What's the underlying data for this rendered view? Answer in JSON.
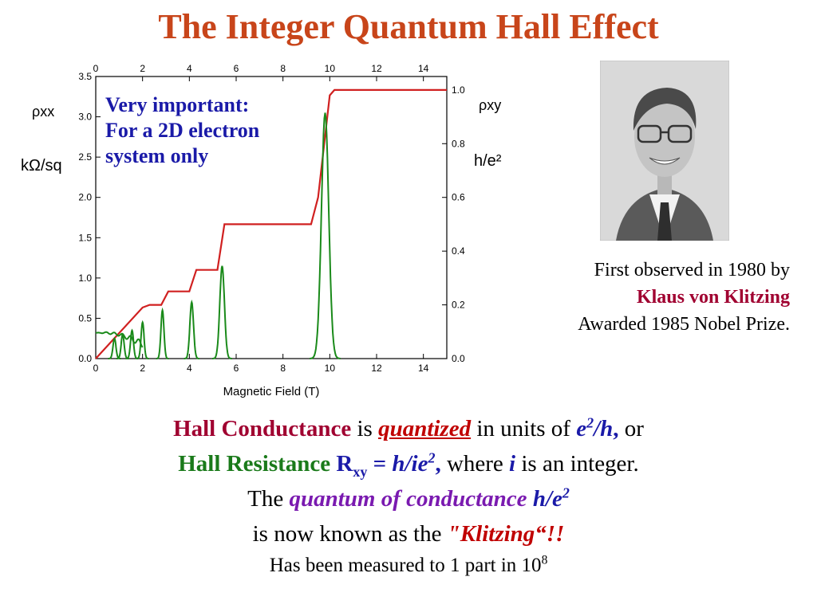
{
  "slide": {
    "title": "The Integer Quantum Hall Effect"
  },
  "note": {
    "line1": "Very important:",
    "line2": "For a 2D electron",
    "line3": "system only"
  },
  "credit": {
    "line1": "First observed in 1980 by",
    "name": "Klaus von Klitzing",
    "line3": "Awarded 1985 Nobel Prize."
  },
  "body": {
    "l1_a": "Hall Conductance",
    "l1_b": " is ",
    "l1_c": "quantized",
    "l1_d": " in units of ",
    "l1_e": "e",
    "l1_e_sup": "2",
    "l1_f": "/h",
    "l1_g": ",",
    "l1_h": " or",
    "l2_a": "Hall Resistance",
    "l2_b": " R",
    "l2_b_sub": "xy",
    "l2_c": " = ",
    "l2_d": "h/ie",
    "l2_d_sup": "2",
    "l2_e": ",",
    "l2_f": " where ",
    "l2_g": "i",
    "l2_h": " is an integer.",
    "l3_a": "The ",
    "l3_b": "quantum of conductance",
    "l3_c": " ",
    "l3_d": "h/e",
    "l3_d_sup": "2",
    "l4_a": "is now known as the ",
    "l4_b": "\"Klitzing“!!",
    "l5_a": "Has been measured to 1 part in 10",
    "l5_sup": "8"
  },
  "colors": {
    "title": "#c8451a",
    "rho_xy_curve": "#d02020",
    "rho_xx_curve": "#1a8a1a",
    "note_text": "#1a1aa8"
  },
  "chart_data": {
    "type": "line",
    "xlabel": "Magnetic Field  (T)",
    "x_ticks": [
      "0",
      "2",
      "4",
      "6",
      "8",
      "10",
      "12",
      "14"
    ],
    "xlim": [
      0,
      15
    ],
    "left_axis": {
      "label_line1": "ρxx",
      "label_line2": "kΩ/sq",
      "ticks": [
        "0.0",
        "0.5",
        "1.0",
        "1.5",
        "2.0",
        "2.5",
        "3.0",
        "3.5"
      ],
      "ylim": [
        0,
        3.5
      ]
    },
    "right_axis": {
      "label_line1": "ρxy",
      "label_line2": "h/e²",
      "ticks": [
        "0.0",
        "0.2",
        "0.4",
        "0.6",
        "0.8",
        "1.0"
      ],
      "ylim": [
        0,
        1.05
      ]
    },
    "series": [
      {
        "axis": "right",
        "x": [
          0,
          2.0,
          2.3,
          2.8,
          3.1,
          4.0,
          4.3,
          5.2,
          5.5,
          9.2,
          9.5,
          10.0,
          10.2,
          15
        ],
        "y": [
          0,
          0.19,
          0.2,
          0.2,
          0.25,
          0.25,
          0.33,
          0.33,
          0.5,
          0.5,
          0.6,
          0.98,
          1.0,
          1.0
        ]
      },
      {
        "axis": "left",
        "baseline_x": [
          0,
          0.5,
          1.0,
          1.5,
          2.0
        ],
        "baseline_y": [
          0.32,
          0.32,
          0.3,
          0.25,
          0.18
        ],
        "peaks": [
          {
            "x": 0.8,
            "y": 0.25
          },
          {
            "x": 1.15,
            "y": 0.3
          },
          {
            "x": 1.55,
            "y": 0.35
          },
          {
            "x": 2.0,
            "y": 0.45
          },
          {
            "x": 2.85,
            "y": 0.6
          },
          {
            "x": 4.1,
            "y": 0.7
          },
          {
            "x": 5.4,
            "y": 1.15
          },
          {
            "x": 9.8,
            "y": 3.05
          }
        ]
      }
    ]
  }
}
